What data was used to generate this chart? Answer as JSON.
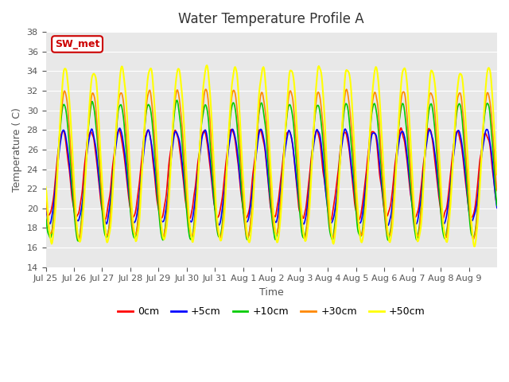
{
  "title": "Water Temperature Profile A",
  "xlabel": "Time",
  "ylabel": "Temperature ( C)",
  "ylim": [
    14,
    38
  ],
  "yticks": [
    14,
    16,
    18,
    20,
    22,
    24,
    26,
    28,
    30,
    32,
    34,
    36,
    38
  ],
  "xlabels": [
    "Jul 25",
    "Jul 26",
    "Jul 27",
    "Jul 28",
    "Jul 29",
    "Jul 30",
    "Jul 31",
    "Aug 1",
    "Aug 2",
    "Aug 3",
    "Aug 4",
    "Aug 5",
    "Aug 6",
    "Aug 7",
    "Aug 8",
    "Aug 9"
  ],
  "series": {
    "0cm": {
      "color": "#FF0000",
      "lw": 1.2
    },
    "+5cm": {
      "color": "#0000FF",
      "lw": 1.2
    },
    "+10cm": {
      "color": "#00CC00",
      "lw": 1.2
    },
    "+30cm": {
      "color": "#FF8800",
      "lw": 1.2
    },
    "+50cm": {
      "color": "#FFFF00",
      "lw": 1.5
    }
  },
  "legend_label": "SW_met",
  "legend_color": "#CC0000",
  "bg_color": "#E8E8E8",
  "grid_color": "#FFFFFF"
}
